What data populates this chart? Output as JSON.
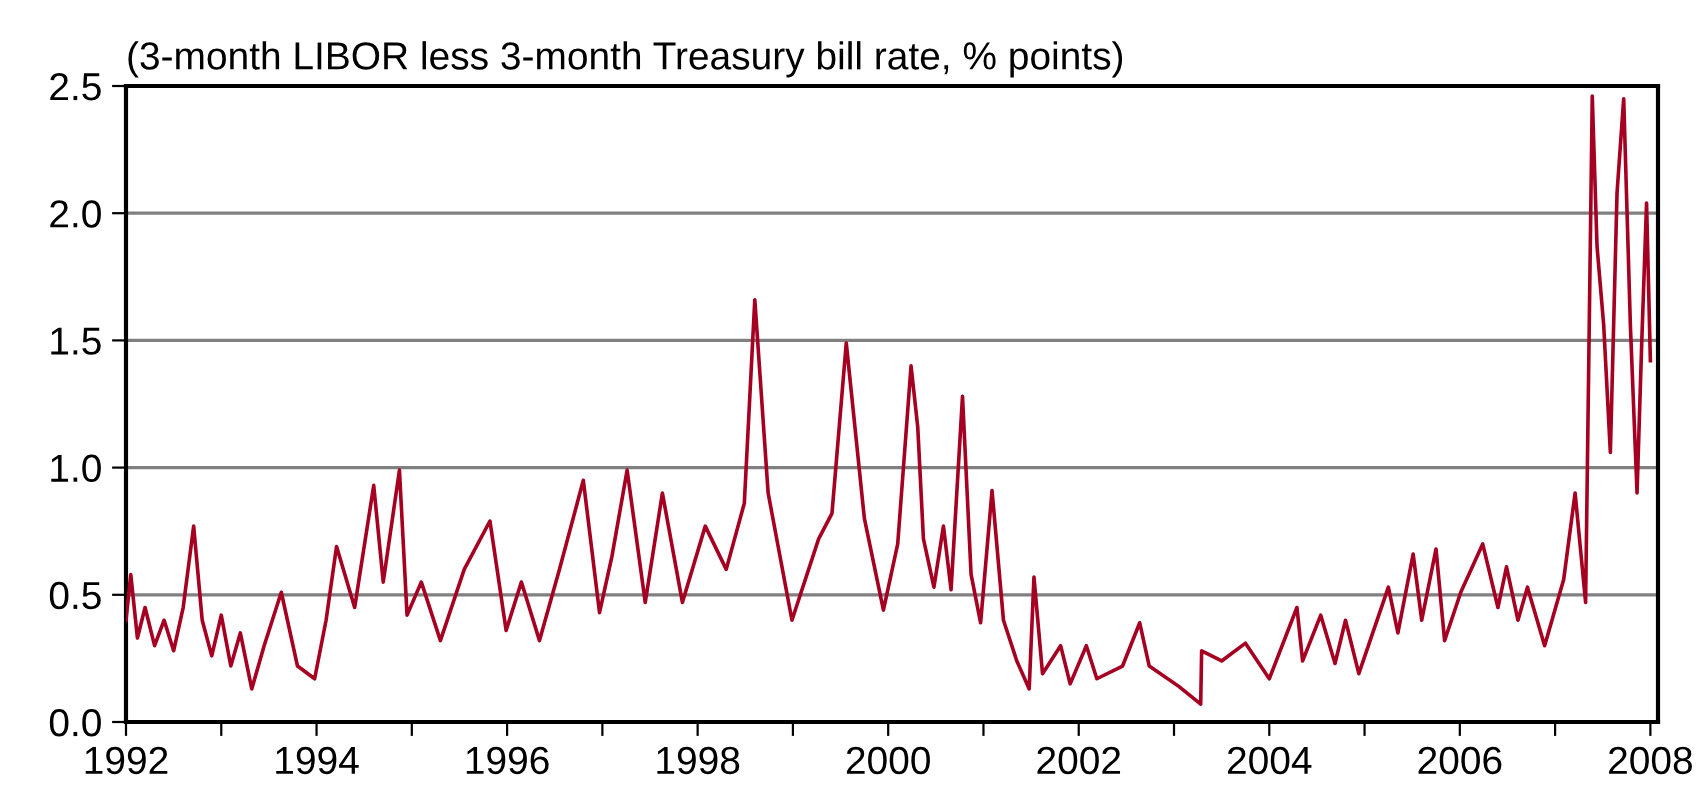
{
  "chart_data": {
    "type": "line",
    "title": "(3-month LIBOR less 3-month Treasury bill rate, % points)",
    "x": [
      1992.0,
      1992.05,
      1992.12,
      1992.2,
      1992.3,
      1992.4,
      1992.5,
      1992.6,
      1992.71,
      1992.8,
      1992.9,
      1993.0,
      1993.1,
      1993.2,
      1993.32,
      1993.45,
      1993.63,
      1993.8,
      1993.98,
      1994.1,
      1994.21,
      1994.4,
      1994.6,
      1994.7,
      1994.87,
      1994.95,
      1995.1,
      1995.3,
      1995.55,
      1995.82,
      1995.99,
      1996.15,
      1996.34,
      1996.55,
      1996.8,
      1996.97,
      1997.1,
      1997.26,
      1997.45,
      1997.63,
      1997.84,
      1998.08,
      1998.3,
      1998.49,
      1998.6,
      1998.74,
      1998.99,
      1999.27,
      1999.41,
      1999.56,
      1999.75,
      1999.95,
      2000.1,
      2000.24,
      2000.31,
      2000.37,
      2000.48,
      2000.58,
      2000.66,
      2000.78,
      2000.87,
      2000.97,
      2001.09,
      2001.21,
      2001.35,
      2001.48,
      2001.53,
      2001.62,
      2001.81,
      2001.91,
      2002.08,
      2002.19,
      2002.46,
      2002.64,
      2002.74,
      2003.05,
      2003.28,
      2003.29,
      2003.5,
      2003.75,
      2004.0,
      2004.29,
      2004.35,
      2004.54,
      2004.69,
      2004.8,
      2004.94,
      2005.25,
      2005.35,
      2005.51,
      2005.6,
      2005.75,
      2005.84,
      2006.01,
      2006.24,
      2006.4,
      2006.49,
      2006.61,
      2006.71,
      2006.89,
      2007.09,
      2007.21,
      2007.32,
      2007.39,
      2007.44,
      2007.51,
      2007.58,
      2007.65,
      2007.72,
      2007.79,
      2007.86,
      2007.91,
      2007.96,
      2008.0
    ],
    "series": [
      {
        "color": "#a50021",
        "values": [
          0.4,
          0.58,
          0.33,
          0.45,
          0.3,
          0.4,
          0.28,
          0.45,
          0.77,
          0.4,
          0.26,
          0.42,
          0.22,
          0.35,
          0.13,
          0.3,
          0.51,
          0.22,
          0.17,
          0.4,
          0.69,
          0.45,
          0.93,
          0.55,
          0.99,
          0.42,
          0.55,
          0.32,
          0.6,
          0.79,
          0.36,
          0.55,
          0.32,
          0.6,
          0.95,
          0.43,
          0.65,
          0.99,
          0.47,
          0.9,
          0.47,
          0.77,
          0.6,
          0.86,
          1.66,
          0.9,
          0.4,
          0.72,
          0.82,
          1.49,
          0.8,
          0.44,
          0.7,
          1.4,
          1.16,
          0.72,
          0.53,
          0.77,
          0.52,
          1.28,
          0.58,
          0.39,
          0.91,
          0.4,
          0.24,
          0.13,
          0.57,
          0.19,
          0.3,
          0.15,
          0.3,
          0.17,
          0.22,
          0.39,
          0.22,
          0.14,
          0.07,
          0.28,
          0.24,
          0.31,
          0.17,
          0.45,
          0.24,
          0.42,
          0.23,
          0.4,
          0.19,
          0.53,
          0.35,
          0.66,
          0.4,
          0.68,
          0.32,
          0.51,
          0.7,
          0.45,
          0.61,
          0.4,
          0.53,
          0.3,
          0.56,
          0.9,
          0.47,
          2.46,
          1.87,
          1.56,
          1.06,
          2.08,
          2.45,
          1.56,
          0.9,
          1.5,
          2.04,
          1.42
        ]
      }
    ],
    "xlim": [
      1992,
      2008.08
    ],
    "xticks": [
      1992,
      {
        "value": 1993,
        "label": null
      },
      1994,
      {
        "value": 1995,
        "label": null
      },
      1996,
      {
        "value": 1997,
        "label": null
      },
      1998,
      {
        "value": 1999,
        "label": null
      },
      2000,
      {
        "value": 2001,
        "label": null
      },
      2002,
      {
        "value": 2003,
        "label": null
      },
      2004,
      {
        "value": 2005,
        "label": null
      },
      2006,
      {
        "value": 2007,
        "label": null
      },
      2008
    ],
    "ylim": [
      0,
      2.5
    ],
    "yticks": [
      {
        "value": 0,
        "label": "0.0"
      },
      {
        "value": 0.5,
        "label": "0.5"
      },
      {
        "value": 1,
        "label": "1.0"
      },
      {
        "value": 1.5,
        "label": "1.5"
      },
      {
        "value": 2,
        "label": "2.0"
      },
      {
        "value": 2.5,
        "label": "2.5"
      }
    ],
    "grid": "y",
    "legend": false,
    "marker": "none",
    "line_style": "solid"
  }
}
